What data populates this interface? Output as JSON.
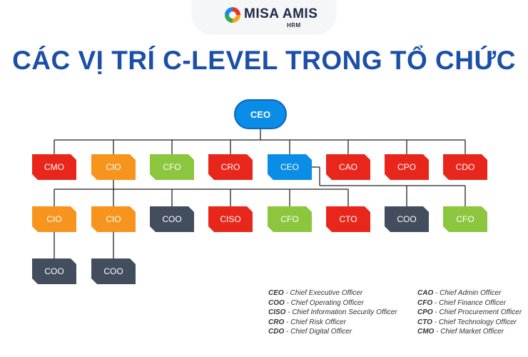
{
  "brand": {
    "name": "MISA AMIS",
    "sub": "HRM"
  },
  "title": "CÁC VỊ TRÍ C-LEVEL TRONG TỔ CHỨC",
  "colors": {
    "blue": "#0a8de6",
    "orange": "#f7941d",
    "green": "#8cc63f",
    "red": "#e8261b",
    "slate": "#424d5e",
    "line": "#222222",
    "title": "#1b4fa8"
  },
  "root": {
    "label": "CEO",
    "color": "blue"
  },
  "level1": [
    {
      "label": "CMO",
      "color": "red"
    },
    {
      "label": "CIO",
      "color": "orange"
    },
    {
      "label": "CFO",
      "color": "green"
    },
    {
      "label": "CRO",
      "color": "red"
    },
    {
      "label": "CEO",
      "color": "blue"
    },
    {
      "label": "CAO",
      "color": "red"
    },
    {
      "label": "CPO",
      "color": "red"
    },
    {
      "label": "CDO",
      "color": "red"
    }
  ],
  "level2": [
    {
      "label": "CIO",
      "color": "orange",
      "parent": 1
    },
    {
      "label": "CIO",
      "color": "orange",
      "parent": 1
    },
    {
      "label": "COO",
      "color": "slate",
      "parent": 1
    },
    {
      "label": "CISO",
      "color": "red",
      "parent": 1
    },
    {
      "label": "CFO",
      "color": "green",
      "parent": 1
    },
    {
      "label": "CTO",
      "color": "red",
      "parent": 1
    },
    {
      "label": "COO",
      "color": "slate",
      "parent": 4
    },
    {
      "label": "CFO",
      "color": "green",
      "parent": 4
    }
  ],
  "level3": [
    {
      "label": "COO",
      "color": "slate",
      "parent": 0
    },
    {
      "label": "COO",
      "color": "slate",
      "parent": 1
    }
  ],
  "legend_left": [
    {
      "abbr": "CEO",
      "desc": " - Chief  Executive Officer"
    },
    {
      "abbr": "COO",
      "desc": " - Chief Operating Officer"
    },
    {
      "abbr": "CISO",
      "desc": " - Chief Information Security Officer"
    },
    {
      "abbr": "CRO",
      "desc": " - Chief Risk Officer"
    },
    {
      "abbr": "CDO",
      "desc": " - Chief Digital Officer"
    }
  ],
  "legend_right": [
    {
      "abbr": "CAO",
      "desc": " - Chief Admin Officer"
    },
    {
      "abbr": "CFO",
      "desc": " - Chief Finance Officer"
    },
    {
      "abbr": "CPO",
      "desc": " - Chief Procurement Officer"
    },
    {
      "abbr": "CTO",
      "desc": " - Chief Technology Officer"
    },
    {
      "abbr": "CMO",
      "desc": " - Chief Market Officer"
    }
  ]
}
